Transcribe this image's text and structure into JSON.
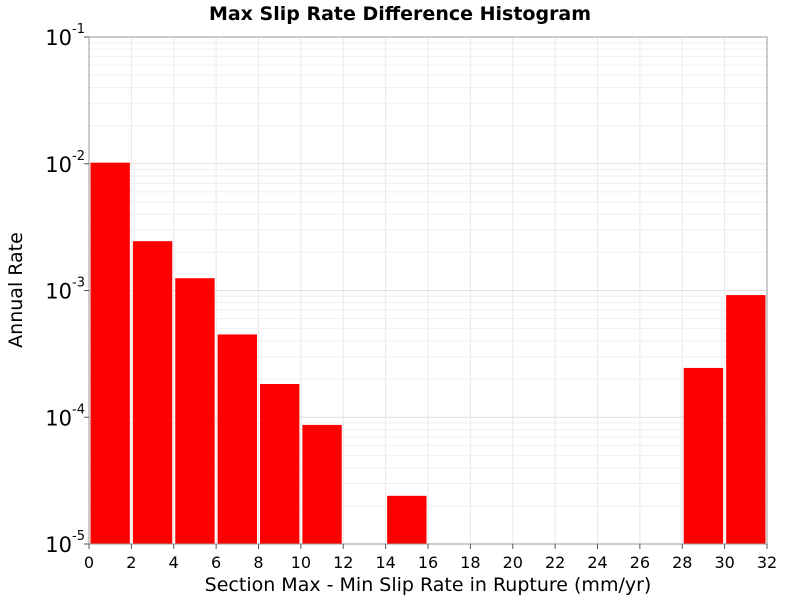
{
  "chart_data": {
    "type": "bar",
    "title": "Max Slip Rate Difference Histogram",
    "xlabel": "Section Max - Min Slip Rate in Rupture (mm/yr)",
    "ylabel": "Annual Rate",
    "x_ticks": [
      "0",
      "2",
      "4",
      "6",
      "8",
      "10",
      "12",
      "14",
      "16",
      "18",
      "20",
      "22",
      "24",
      "26",
      "28",
      "30",
      "32"
    ],
    "xlim": [
      0,
      32
    ],
    "y_scale": "log",
    "ylim": [
      1e-05,
      0.1
    ],
    "y_ticks": [
      {
        "value": 0.1,
        "base": "10",
        "exp": "-1"
      },
      {
        "value": 0.01,
        "base": "10",
        "exp": "-2"
      },
      {
        "value": 0.001,
        "base": "10",
        "exp": "-3"
      },
      {
        "value": 0.0001,
        "base": "10",
        "exp": "-4"
      },
      {
        "value": 1e-05,
        "base": "10",
        "exp": "-5"
      }
    ],
    "grid": true,
    "bar_color": "#ff0000",
    "bin_width": 2,
    "bins": [
      {
        "x0": 0,
        "value": 0.0102
      },
      {
        "x0": 2,
        "value": 0.00245
      },
      {
        "x0": 4,
        "value": 0.00125
      },
      {
        "x0": 6,
        "value": 0.00045
      },
      {
        "x0": 8,
        "value": 0.000183
      },
      {
        "x0": 10,
        "value": 8.7e-05
      },
      {
        "x0": 12,
        "value": 0
      },
      {
        "x0": 14,
        "value": 2.4e-05
      },
      {
        "x0": 16,
        "value": 0
      },
      {
        "x0": 18,
        "value": 0
      },
      {
        "x0": 20,
        "value": 0
      },
      {
        "x0": 22,
        "value": 0
      },
      {
        "x0": 24,
        "value": 0
      },
      {
        "x0": 26,
        "value": 0
      },
      {
        "x0": 28,
        "value": 0.000245
      },
      {
        "x0": 30,
        "value": 0.00092
      }
    ]
  }
}
